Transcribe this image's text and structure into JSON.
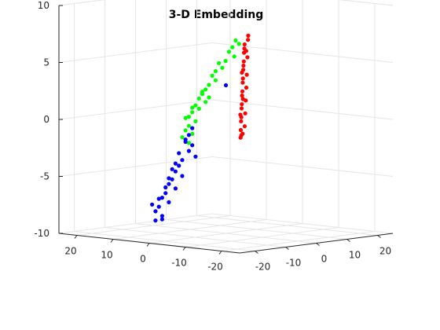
{
  "chart_data": {
    "type": "scatter",
    "title": "3-D Embedding",
    "xlabel": "",
    "ylabel": "",
    "zlabel": "",
    "grid": true,
    "legend": "none",
    "x_ticks": [
      "20",
      "10",
      "0",
      "-10",
      "-20"
    ],
    "y_ticks": [
      "-20",
      "-10",
      "0",
      "10",
      "20"
    ],
    "z_ticks": [
      "10",
      "5",
      "0",
      "-5",
      "-10"
    ],
    "xlim": [
      -25,
      25
    ],
    "ylim": [
      -25,
      25
    ],
    "zlim": [
      -10,
      10
    ],
    "series": [
      {
        "color": "#00ff00",
        "points": [
          [
            -1,
            2,
            6.9
          ],
          [
            -1.5,
            2.5,
            6.6
          ],
          [
            -0.5,
            1.5,
            6.3
          ],
          [
            0,
            1,
            5.9
          ],
          [
            -0.8,
            1.8,
            5.5
          ],
          [
            0.5,
            0.5,
            5.1
          ],
          [
            1.5,
            -0.5,
            4.9
          ],
          [
            1,
            0,
            4.5
          ],
          [
            2,
            -1,
            4.2
          ],
          [
            2.5,
            -1.5,
            3.8
          ],
          [
            2,
            -1,
            3.4
          ],
          [
            3,
            -2,
            3.0
          ],
          [
            3.5,
            -2.5,
            2.6
          ],
          [
            4,
            -3,
            2.2
          ],
          [
            4.5,
            -3.5,
            1.8
          ],
          [
            3.5,
            -2.5,
            1.5
          ],
          [
            5,
            -4,
            1.2
          ],
          [
            4.5,
            -3.5,
            0.9
          ],
          [
            5.5,
            -4.5,
            0.6
          ],
          [
            6,
            -5,
            0.2
          ],
          [
            5,
            -4,
            -0.2
          ],
          [
            6,
            -5,
            -0.6
          ],
          [
            6.5,
            -5.5,
            -1.0
          ],
          [
            5.5,
            -4.5,
            -1.3
          ],
          [
            7,
            -6,
            -1.6
          ],
          [
            4,
            -3,
            2.4
          ],
          [
            3,
            -2,
            1.9
          ],
          [
            5.5,
            -4.5,
            1.0
          ],
          [
            6.5,
            -5.5,
            0.1
          ],
          [
            6,
            -5,
            -2.1
          ]
        ]
      },
      {
        "color": "#ff0000",
        "points": [
          [
            4,
            12,
            6.8
          ],
          [
            4.5,
            12.5,
            6.4
          ],
          [
            5,
            12,
            6.0
          ],
          [
            5.5,
            12.5,
            5.6
          ],
          [
            6,
            13,
            5.2
          ],
          [
            5.5,
            13.5,
            4.8
          ],
          [
            6.5,
            13.5,
            4.4
          ],
          [
            7,
            14,
            4.0
          ],
          [
            7.5,
            14.5,
            3.6
          ],
          [
            6.5,
            14.5,
            3.2
          ],
          [
            8,
            15,
            2.8
          ],
          [
            8.5,
            15.5,
            2.4
          ],
          [
            7.5,
            15.5,
            2.0
          ],
          [
            9,
            16,
            1.6
          ],
          [
            9.5,
            16.5,
            1.2
          ],
          [
            8.5,
            16.5,
            0.8
          ],
          [
            10,
            17,
            0.4
          ],
          [
            10.5,
            17.5,
            0.0
          ],
          [
            9.5,
            17.5,
            -0.4
          ],
          [
            11,
            18,
            -0.8
          ],
          [
            11.5,
            18.5,
            -1.2
          ],
          [
            10.5,
            18.5,
            -1.6
          ],
          [
            12,
            19,
            -2.0
          ],
          [
            11,
            18,
            -2.4
          ],
          [
            12.5,
            19.5,
            -2.7
          ],
          [
            5,
            12.5,
            5.4
          ],
          [
            7,
            13.5,
            3.4
          ],
          [
            8,
            15,
            1.0
          ],
          [
            10,
            16.5,
            -0.5
          ],
          [
            11.5,
            19,
            -2.3
          ]
        ]
      },
      {
        "color": "#0000ff",
        "points": [
          [
            0,
            0,
            3.0
          ],
          [
            5.5,
            -4.5,
            -0.8
          ],
          [
            6.5,
            -5.5,
            -1.8
          ],
          [
            5.5,
            -4.5,
            -2.3
          ],
          [
            6,
            -5,
            -2.8
          ],
          [
            5,
            -4,
            -3.3
          ],
          [
            7,
            -6,
            -3.6
          ],
          [
            7.5,
            -6.5,
            -4.1
          ],
          [
            8,
            -7,
            -4.6
          ],
          [
            7,
            -6,
            -5.0
          ],
          [
            8.5,
            -7.5,
            -5.3
          ],
          [
            9,
            -8,
            -5.7
          ],
          [
            8,
            -7,
            -6.1
          ],
          [
            9.5,
            -8.5,
            -6.5
          ],
          [
            10,
            -9,
            -6.9
          ],
          [
            9,
            -8,
            -7.3
          ],
          [
            10.5,
            -9.5,
            -7.7
          ],
          [
            11,
            -10,
            -8.1
          ],
          [
            10,
            -9,
            -8.5
          ],
          [
            11,
            -10,
            -8.9
          ],
          [
            6,
            -5,
            -1.4
          ],
          [
            7.5,
            -6.5,
            -3.0
          ],
          [
            8.5,
            -7.5,
            -4.4
          ],
          [
            9.5,
            -8.5,
            -6.0
          ],
          [
            10.5,
            -9.5,
            -7.0
          ],
          [
            10,
            -9,
            -8.8
          ],
          [
            11.5,
            -10.5,
            -7.5
          ],
          [
            9,
            -8,
            -5.2
          ],
          [
            8,
            -7,
            -3.9
          ],
          [
            6.5,
            -5.5,
            -2.0
          ]
        ]
      }
    ]
  }
}
